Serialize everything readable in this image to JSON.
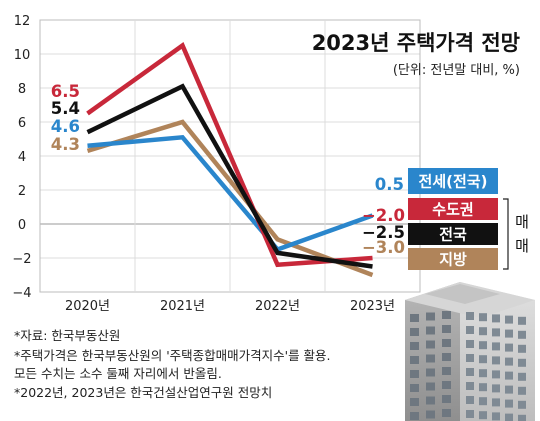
{
  "chart_data": {
    "type": "line",
    "title": "2023년 주택가격 전망",
    "subtitle": "(단위: 전년말 대비, %)",
    "categories": [
      "2020년",
      "2021년",
      "2022년",
      "2023년"
    ],
    "ylim": [
      -4,
      12
    ],
    "yticks": [
      "12",
      "10",
      "8",
      "6",
      "4",
      "2",
      "0",
      "−2",
      "−4"
    ],
    "grid": true,
    "series": [
      {
        "name": "수도권",
        "color": "#c8283a",
        "values": [
          6.5,
          10.5,
          -2.4,
          -2.0
        ],
        "start_label": "6.5",
        "end_label": "−2.0"
      },
      {
        "name": "전국",
        "color": "#111111",
        "values": [
          5.4,
          8.1,
          -1.7,
          -2.5
        ],
        "start_label": "5.4",
        "end_label": "−2.5"
      },
      {
        "name": "전세(전국)",
        "color": "#2a86cc",
        "values": [
          4.6,
          5.1,
          -1.5,
          0.5
        ],
        "start_label": "4.6",
        "end_label": "0.5"
      },
      {
        "name": "지방",
        "color": "#b0845a",
        "values": [
          4.3,
          6.0,
          -0.9,
          -3.0
        ],
        "start_label": "4.3",
        "end_label": "−3.0"
      }
    ],
    "group_label": "매매"
  },
  "notes": [
    "*자료: 한국부동산원",
    "*주택가격은 한국부동산원의 '주택종합매매가격지수'를 활용.",
    "  모든 수치는 소수 둘째 자리에서 반올림.",
    "*2022년, 2023년은 한국건설산업연구원 전망치"
  ]
}
